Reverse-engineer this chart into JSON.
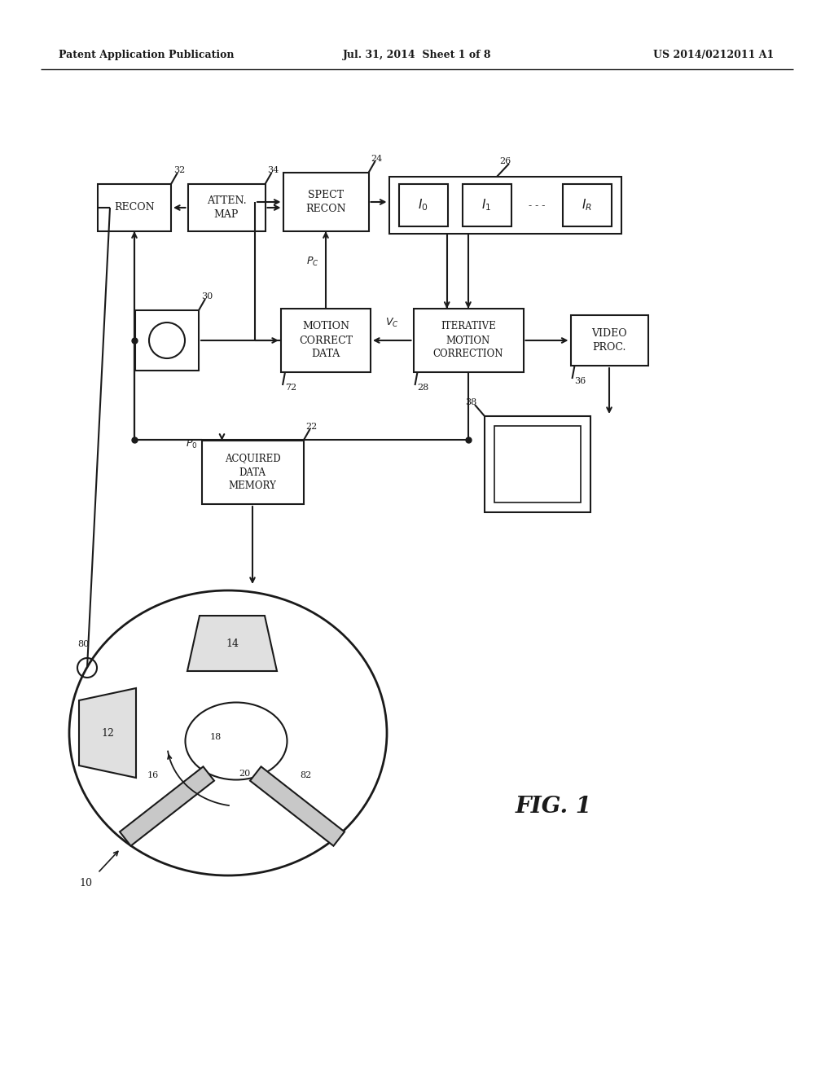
{
  "header_left": "Patent Application Publication",
  "header_mid": "Jul. 31, 2014  Sheet 1 of 8",
  "header_right": "US 2014/0212011 A1",
  "fig_label": "FIG. 1",
  "background": "#ffffff",
  "line_color": "#1a1a1a"
}
